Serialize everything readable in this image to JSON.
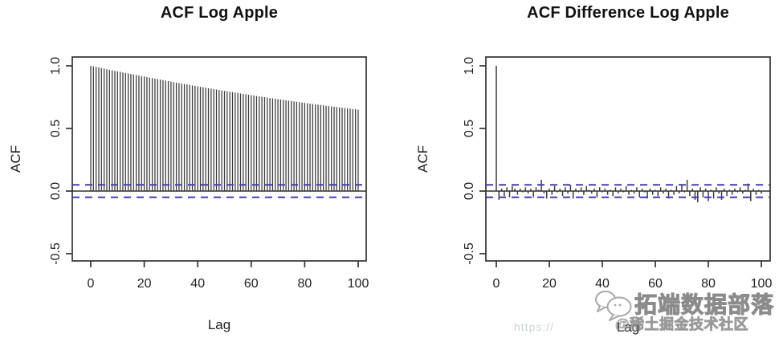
{
  "page": {
    "background": "#ffffff"
  },
  "watermark": {
    "line1": "拓端数据部落",
    "line2": "@稀土掘金技术社区",
    "url_fragment": "https://",
    "icon": "chat-bubbles-icon",
    "color": "#9a9a9a"
  },
  "chart_data": [
    {
      "type": "bar",
      "title": "ACF Log Apple",
      "xlabel": "Lag",
      "ylabel": "ACF",
      "x_start": 0,
      "x_step": 1,
      "x_ticks": [
        0,
        20,
        40,
        60,
        80,
        100
      ],
      "y_ticks": [
        1.0,
        0.5,
        0.0,
        -0.5
      ],
      "ylim": [
        -0.56,
        1.04
      ],
      "xlim": [
        -5,
        105
      ],
      "grid": false,
      "legend": null,
      "conf_level": 0.05,
      "colors": {
        "bar": "#3a3a3a",
        "conf": "#3c3ccc",
        "axis": "#333333"
      },
      "values": [
        1.0,
        0.996,
        0.991,
        0.987,
        0.982,
        0.978,
        0.973,
        0.969,
        0.965,
        0.96,
        0.956,
        0.952,
        0.947,
        0.943,
        0.939,
        0.935,
        0.931,
        0.926,
        0.922,
        0.918,
        0.914,
        0.91,
        0.906,
        0.902,
        0.898,
        0.894,
        0.89,
        0.886,
        0.882,
        0.878,
        0.874,
        0.87,
        0.866,
        0.862,
        0.859,
        0.855,
        0.851,
        0.847,
        0.843,
        0.84,
        0.836,
        0.832,
        0.829,
        0.825,
        0.821,
        0.818,
        0.814,
        0.811,
        0.807,
        0.804,
        0.8,
        0.797,
        0.793,
        0.79,
        0.786,
        0.783,
        0.779,
        0.776,
        0.773,
        0.769,
        0.766,
        0.763,
        0.759,
        0.756,
        0.753,
        0.75,
        0.747,
        0.743,
        0.74,
        0.737,
        0.734,
        0.731,
        0.728,
        0.725,
        0.722,
        0.719,
        0.716,
        0.713,
        0.71,
        0.707,
        0.704,
        0.701,
        0.698,
        0.695,
        0.693,
        0.69,
        0.687,
        0.684,
        0.681,
        0.679,
        0.676,
        0.673,
        0.671,
        0.668,
        0.665,
        0.663,
        0.66,
        0.658,
        0.655,
        0.653,
        0.65
      ]
    },
    {
      "type": "bar",
      "title": "ACF Difference Log Apple",
      "xlabel": "Lag",
      "ylabel": "ACF",
      "x_start": 0,
      "x_step": 1,
      "x_ticks": [
        0,
        20,
        40,
        60,
        80,
        100
      ],
      "y_ticks": [
        1.0,
        0.5,
        0.0,
        -0.5
      ],
      "ylim": [
        -0.56,
        1.04
      ],
      "xlim": [
        -5,
        105
      ],
      "grid": false,
      "legend": null,
      "conf_level": 0.05,
      "colors": {
        "bar": "#3a3a3a",
        "conf": "#3c3ccc",
        "axis": "#333333"
      },
      "values": [
        1.0,
        -0.07,
        0.02,
        -0.04,
        0.03,
        -0.05,
        0.04,
        0.02,
        -0.03,
        0.02,
        -0.01,
        0.03,
        -0.02,
        0.02,
        -0.05,
        0.03,
        0.01,
        0.09,
        -0.02,
        -0.06,
        0.02,
        -0.03,
        0.04,
        -0.01,
        0.02,
        -0.04,
        0.03,
        -0.02,
        0.05,
        -0.06,
        0.02,
        -0.01,
        0.03,
        -0.03,
        0.04,
        0.01,
        -0.02,
        0.02,
        -0.05,
        0.03,
        -0.01,
        0.02,
        -0.03,
        0.01,
        -0.04,
        0.03,
        -0.02,
        0.02,
        -0.01,
        0.04,
        -0.03,
        0.01,
        -0.02,
        0.03,
        -0.05,
        0.02,
        -0.01,
        -0.06,
        0.02,
        -0.03,
        0.01,
        -0.04,
        0.03,
        -0.02,
        0.02,
        -0.06,
        0.01,
        -0.03,
        0.04,
        -0.02,
        0.05,
        -0.01,
        0.09,
        -0.04,
        0.02,
        -0.07,
        -0.09,
        0.03,
        -0.05,
        0.02,
        -0.08,
        0.01,
        -0.06,
        0.03,
        -0.02,
        -0.07,
        0.02,
        -0.04,
        0.01,
        -0.03,
        0.02,
        -0.01,
        0.03,
        -0.02,
        0.01,
        0.06,
        -0.08,
        0.02,
        -0.03,
        0.01,
        -0.02
      ]
    }
  ]
}
